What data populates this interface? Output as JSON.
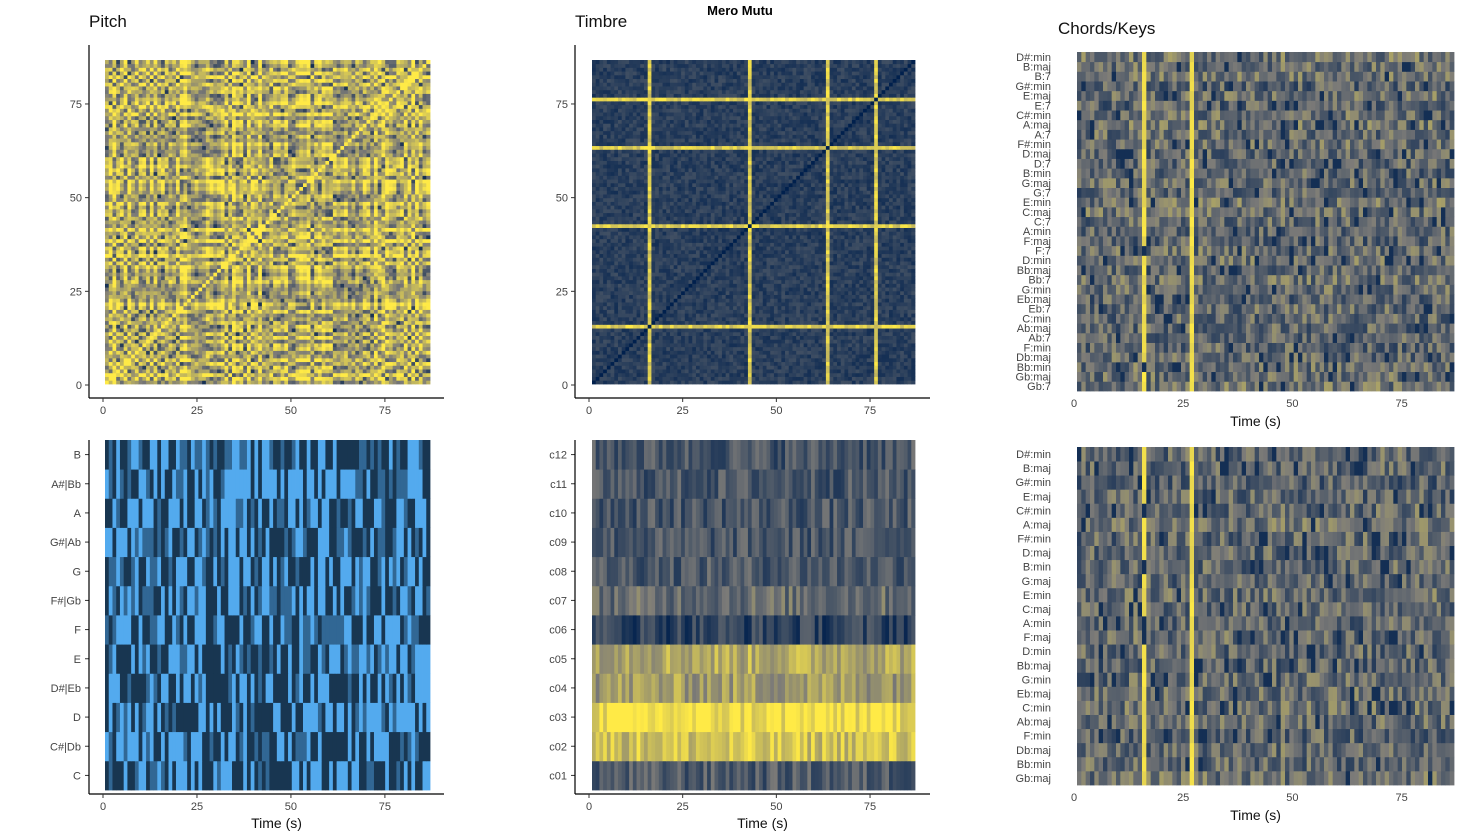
{
  "chart_data": {
    "type": "heatmap",
    "title": "Mero Mutu",
    "panels": [
      {
        "id": "pitch-ssm",
        "title": "Pitch",
        "kind": "self-similarity",
        "xlim": [
          0,
          87
        ],
        "ylim": [
          0,
          87
        ],
        "xticks": [
          "0",
          "25",
          "50",
          "75"
        ],
        "xtick_values": [
          0,
          25,
          50,
          75
        ],
        "yticks": [
          "0",
          "25",
          "50",
          "75"
        ],
        "ytick_values": [
          0,
          25,
          50,
          75
        ],
        "xlabel": "",
        "colorscale": [
          "#00204d",
          "#7c7b78",
          "#ffea46"
        ],
        "matrix": "87x87 self-similarity (mostly high similarity, yellow)"
      },
      {
        "id": "timbre-ssm",
        "title": "Timbre",
        "kind": "self-similarity",
        "xlim": [
          0,
          87
        ],
        "ylim": [
          0,
          87
        ],
        "xticks": [
          "0",
          "25",
          "50",
          "75"
        ],
        "xtick_values": [
          0,
          25,
          50,
          75
        ],
        "yticks": [
          "0",
          "25",
          "50",
          "75"
        ],
        "ytick_values": [
          0,
          25,
          50,
          75
        ],
        "xlabel": "",
        "colorscale": [
          "#00204d",
          "#7c7b78",
          "#ffea46"
        ],
        "bright_lines_at": [
          15,
          42,
          63,
          76
        ]
      },
      {
        "id": "chords-keys-chords",
        "title": "Chords/Keys",
        "kind": "chordogram",
        "xlim": [
          0,
          87
        ],
        "xticks": [
          "0",
          "25",
          "50",
          "75"
        ],
        "xtick_values": [
          0,
          25,
          50,
          75
        ],
        "xlabel": "Time (s)",
        "categories": [
          "Gb:7",
          "Gb:maj",
          "Bb:min",
          "Db:maj",
          "F:min",
          "Ab:7",
          "Ab:maj",
          "C:min",
          "Eb:7",
          "Eb:maj",
          "G:min",
          "Bb:7",
          "Bb:maj",
          "D:min",
          "F:7",
          "F:maj",
          "A:min",
          "C:7",
          "C:maj",
          "E:min",
          "G:7",
          "G:maj",
          "B:min",
          "D:7",
          "D:maj",
          "F#:min",
          "A:7",
          "A:maj",
          "C#:min",
          "E:7",
          "E:maj",
          "G#:min",
          "B:7",
          "B:maj",
          "D#:min"
        ],
        "colorscale": [
          "#00204d",
          "#7c7b78",
          "#ffea46"
        ],
        "bright_columns_at": [
          15,
          26
        ]
      },
      {
        "id": "chroma",
        "title": "",
        "kind": "chromagram",
        "xlim": [
          0,
          87
        ],
        "xticks": [
          "0",
          "25",
          "50",
          "75"
        ],
        "xtick_values": [
          0,
          25,
          50,
          75
        ],
        "xlabel": "Time (s)",
        "categories": [
          "C",
          "C#|Db",
          "D",
          "D#|Eb",
          "E",
          "F",
          "F#|Gb",
          "G",
          "G#|Ab",
          "A",
          "A#|Bb",
          "B"
        ],
        "colorscale": [
          "#132b43",
          "#56b1f7"
        ]
      },
      {
        "id": "cepstro",
        "title": "",
        "kind": "cepstrogram",
        "xlim": [
          0,
          87
        ],
        "xticks": [
          "0",
          "25",
          "50",
          "75"
        ],
        "xtick_values": [
          0,
          25,
          50,
          75
        ],
        "xlabel": "Time (s)",
        "categories": [
          "c01",
          "c02",
          "c03",
          "c04",
          "c05",
          "c06",
          "c07",
          "c08",
          "c09",
          "c10",
          "c11",
          "c12"
        ],
        "colorscale": [
          "#00204d",
          "#7c7b78",
          "#ffea46"
        ]
      },
      {
        "id": "chords-keys-keys",
        "title": "",
        "kind": "keygram",
        "xlim": [
          0,
          87
        ],
        "xticks": [
          "0",
          "25",
          "50",
          "75"
        ],
        "xtick_values": [
          0,
          25,
          50,
          75
        ],
        "xlabel": "Time (s)",
        "categories": [
          "Gb:maj",
          "Bb:min",
          "Db:maj",
          "F:min",
          "Ab:maj",
          "C:min",
          "Eb:maj",
          "G:min",
          "Bb:maj",
          "D:min",
          "F:maj",
          "A:min",
          "C:maj",
          "E:min",
          "G:maj",
          "B:min",
          "D:maj",
          "F#:min",
          "A:maj",
          "C#:min",
          "E:maj",
          "G#:min",
          "B:maj",
          "D#:min"
        ],
        "colorscale": [
          "#00204d",
          "#7c7b78",
          "#ffea46"
        ],
        "bright_columns_at": [
          15,
          26
        ]
      }
    ]
  }
}
